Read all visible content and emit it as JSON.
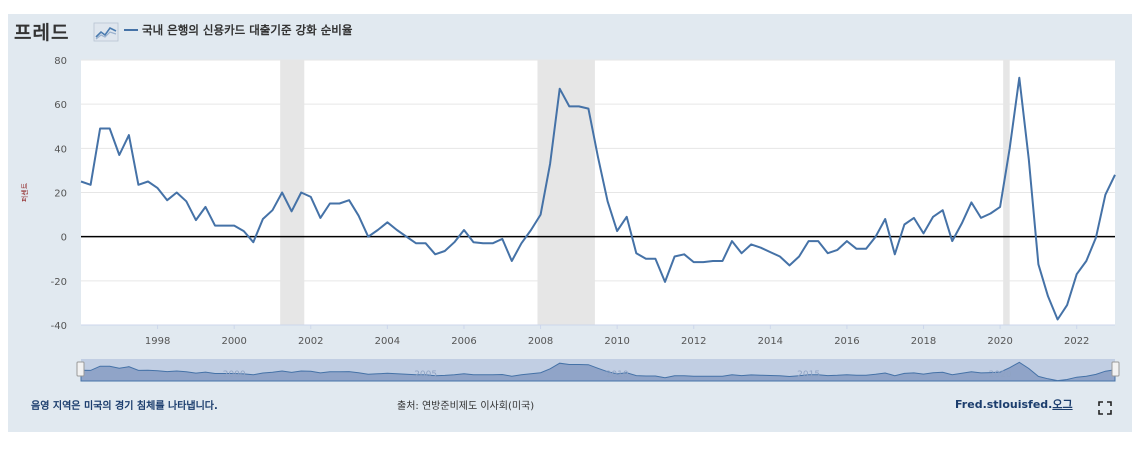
{
  "header": {
    "logo_text": "프레드",
    "logo_icon": "graph-icon",
    "series_label": "국내 은행의 신용카드 대출기준 강화 순비율"
  },
  "footer": {
    "recession_note": "음영 지역은 미국의 경기 침체를 나타냅니다.",
    "source_label": "출처:",
    "source_value": "연방준비제도 이사회(미국)",
    "site_main": "Fred.stlouisfed.",
    "site_suffix": "오그",
    "fullscreen_icon": "fullscreen-icon"
  },
  "colors": {
    "line": "#4572a7",
    "recession": "#e6e6e6",
    "panel": "#e1e9f0",
    "navigator_fill": "#7f96bf",
    "navigator_selected": "#a8b8d8"
  },
  "chart_data": {
    "type": "line",
    "title": "",
    "xlabel": "",
    "ylabel": "퍼센트",
    "ylim": [
      -40,
      80
    ],
    "yticks": [
      "-40",
      "-20",
      "0",
      "20",
      "40",
      "60",
      "80"
    ],
    "xticks": [
      "1998",
      "2000",
      "2002",
      "2004",
      "2006",
      "2008",
      "2010",
      "2012",
      "2014",
      "2016",
      "2018",
      "2020",
      "2022"
    ],
    "navigator_ticks": [
      "2000",
      "2005",
      "2010",
      "2015",
      "2020"
    ],
    "x_domain": [
      1996.0,
      2023.0
    ],
    "grid": true,
    "zero_line": true,
    "recessions": [
      [
        2001.2,
        2001.83
      ],
      [
        2007.92,
        2009.42
      ],
      [
        2020.08,
        2020.25
      ]
    ],
    "series": [
      {
        "name": "국내 은행의 신용카드 대출기준 강화 순비율",
        "x": [
          1996.0,
          1996.25,
          1996.5,
          1996.75,
          1997.0,
          1997.25,
          1997.5,
          1997.75,
          1998.0,
          1998.25,
          1998.5,
          1998.75,
          1999.0,
          1999.25,
          1999.5,
          1999.75,
          2000.0,
          2000.25,
          2000.5,
          2000.75,
          2001.0,
          2001.25,
          2001.5,
          2001.75,
          2002.0,
          2002.25,
          2002.5,
          2002.75,
          2003.0,
          2003.25,
          2003.5,
          2003.75,
          2004.0,
          2004.25,
          2004.5,
          2004.75,
          2005.0,
          2005.25,
          2005.5,
          2005.75,
          2006.0,
          2006.25,
          2006.5,
          2006.75,
          2007.0,
          2007.25,
          2007.5,
          2007.75,
          2008.0,
          2008.25,
          2008.5,
          2008.75,
          2009.0,
          2009.25,
          2009.5,
          2009.75,
          2010.0,
          2010.25,
          2010.5,
          2010.75,
          2011.0,
          2011.25,
          2011.5,
          2011.75,
          2012.0,
          2012.25,
          2012.5,
          2012.75,
          2013.0,
          2013.25,
          2013.5,
          2013.75,
          2014.0,
          2014.25,
          2014.5,
          2014.75,
          2015.0,
          2015.25,
          2015.5,
          2015.75,
          2016.0,
          2016.25,
          2016.5,
          2016.75,
          2017.0,
          2017.25,
          2017.5,
          2017.75,
          2018.0,
          2018.25,
          2018.5,
          2018.75,
          2019.0,
          2019.25,
          2019.5,
          2019.75,
          2020.0,
          2020.25,
          2020.5,
          2020.75,
          2021.0,
          2021.25,
          2021.5,
          2021.75,
          2022.0,
          2022.25,
          2022.5,
          2022.75,
          2023.0
        ],
        "values": [
          25,
          23.5,
          49,
          49,
          37,
          46,
          23.5,
          25,
          22,
          16.5,
          20,
          16,
          7.5,
          13.5,
          5,
          5,
          5,
          2.5,
          -2.5,
          8,
          12,
          20,
          11.5,
          20,
          18,
          8.5,
          15,
          15,
          16.5,
          9.5,
          0,
          3,
          6.5,
          3,
          0,
          -3,
          -3,
          -8,
          -6.5,
          -2.5,
          3,
          -2.5,
          -3,
          -3,
          -1,
          -11,
          -3,
          3,
          10,
          33,
          67,
          59,
          59,
          58,
          36,
          16,
          2.5,
          9,
          -7.5,
          -10,
          -10,
          -20.5,
          -9,
          -8,
          -11.5,
          -11.5,
          -11,
          -11,
          -2,
          -7.5,
          -3.5,
          -5,
          -7,
          -9,
          -13,
          -9,
          -2,
          -2,
          -7.5,
          -6,
          -2,
          -5.5,
          -5.5,
          0,
          8,
          -8,
          5.5,
          8.5,
          1.5,
          9,
          12,
          -2,
          6,
          15.5,
          8.5,
          10.5,
          13.5,
          40,
          72,
          35,
          -12.5,
          -27,
          -37.5,
          -31,
          -17,
          -11,
          -0.5,
          19,
          28
        ]
      }
    ]
  }
}
